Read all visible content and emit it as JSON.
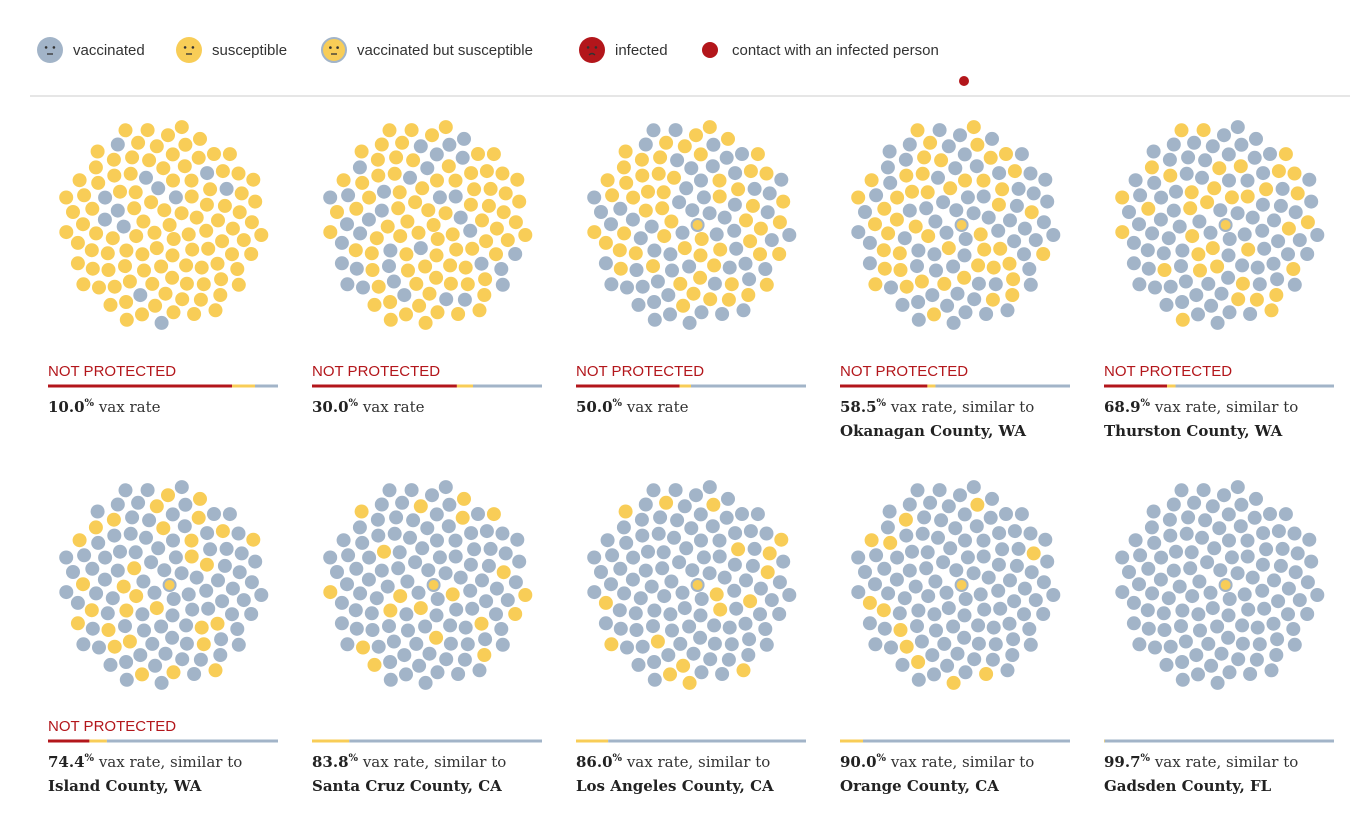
{
  "legend": [
    {
      "label": "vaccinated",
      "kind": "vaccinated"
    },
    {
      "label": "susceptible",
      "kind": "susceptible"
    },
    {
      "label": "vaccinated but susceptible",
      "kind": "vaxsus"
    },
    {
      "label": "infected",
      "kind": "infected"
    },
    {
      "label": "contact with an infected person",
      "kind": "contact"
    }
  ],
  "colors": {
    "vaccinated": "#a2b4c8",
    "susceptible": "#f8cd57",
    "infected": "#b3161b"
  },
  "rate_unit": "%",
  "panels": [
    {
      "status": "NOT PROTECTED",
      "rate": "10.0",
      "caption": "vax rate",
      "infected_pct": 80,
      "susceptible_pct": 10
    },
    {
      "status": "NOT PROTECTED",
      "rate": "30.0",
      "caption": "vax rate",
      "infected_pct": 63,
      "susceptible_pct": 7
    },
    {
      "status": "NOT PROTECTED",
      "rate": "50.0",
      "caption": "vax rate",
      "infected_pct": 45,
      "susceptible_pct": 5
    },
    {
      "status": "NOT PROTECTED",
      "rate": "58.5",
      "caption": "vax rate, similar to",
      "county": "Okanagan County, WA",
      "infected_pct": 38,
      "susceptible_pct": 3.5
    },
    {
      "status": "NOT PROTECTED",
      "rate": "68.9",
      "caption": "vax rate, similar to",
      "county": "Thurston County, WA",
      "infected_pct": 27.4,
      "susceptible_pct": 3.7
    },
    {
      "status": "NOT PROTECTED",
      "rate": "74.4",
      "caption": "vax rate, similar to",
      "county": "Island County, WA",
      "infected_pct": 18,
      "susceptible_pct": 7.6
    },
    {
      "rate": "83.8",
      "caption": "vax rate, similar to",
      "county": "Santa Cruz County, CA",
      "infected_pct": 0,
      "susceptible_pct": 16.2
    },
    {
      "rate": "86.0",
      "caption": "vax rate, similar to",
      "county": "Los Angeles County, CA",
      "infected_pct": 0,
      "susceptible_pct": 14
    },
    {
      "rate": "90.0",
      "caption": "vax rate, similar to",
      "county": "Orange County, CA",
      "infected_pct": 0,
      "susceptible_pct": 10
    },
    {
      "rate": "99.7",
      "caption": "vax rate, similar to",
      "county": "Gadsden County, FL",
      "infected_pct": 0,
      "susceptible_pct": 0.3
    }
  ]
}
